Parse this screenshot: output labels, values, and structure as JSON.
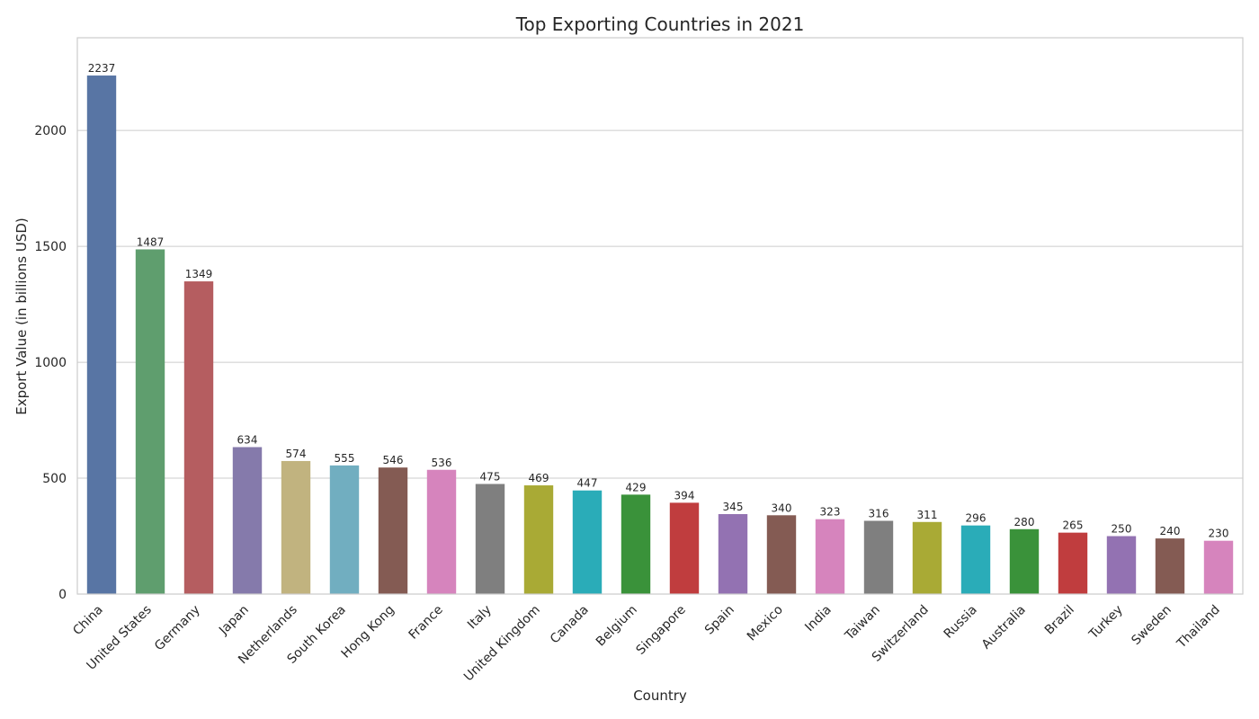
{
  "chart_data": {
    "type": "bar",
    "title": "Top Exporting Countries in 2021",
    "xlabel": "Country",
    "ylabel": "Export Value (in billions USD)",
    "ylim": [
      0,
      2400
    ],
    "yticks": [
      0,
      500,
      1000,
      1500,
      2000
    ],
    "grid": "horizontal",
    "categories": [
      "China",
      "United States",
      "Germany",
      "Japan",
      "Netherlands",
      "South Korea",
      "Hong Kong",
      "France",
      "Italy",
      "United Kingdom",
      "Canada",
      "Belgium",
      "Singapore",
      "Spain",
      "Mexico",
      "India",
      "Taiwan",
      "Switzerland",
      "Russia",
      "Australia",
      "Brazil",
      "Turkey",
      "Sweden",
      "Thailand"
    ],
    "values": [
      2237,
      1487,
      1349,
      634,
      574,
      555,
      546,
      536,
      475,
      469,
      447,
      429,
      394,
      345,
      340,
      323,
      316,
      311,
      296,
      280,
      265,
      250,
      240,
      230
    ],
    "colors": [
      "#5875a4",
      "#5f9e6e",
      "#b55d60",
      "#857aab",
      "#c1b37f",
      "#71aec0",
      "#845b53",
      "#d684bd",
      "#7f7f7f",
      "#a9aa35",
      "#2aacb8",
      "#3a923a",
      "#c03d3e",
      "#9372b2",
      "#845b53",
      "#d684bd",
      "#7f7f7f",
      "#a9aa35",
      "#2aacb8",
      "#3a923a",
      "#c03d3e",
      "#9372b2",
      "#845b53",
      "#d684bd"
    ]
  }
}
